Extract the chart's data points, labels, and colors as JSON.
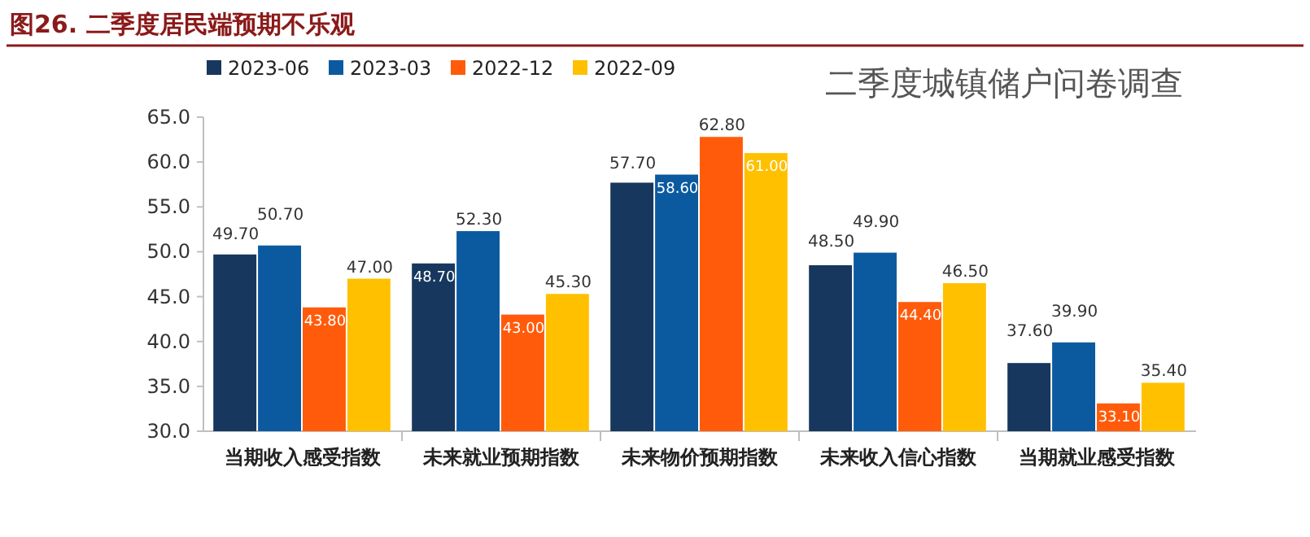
{
  "chart_data": {
    "type": "bar",
    "title": "图26. 二季度居民端预期不乐观",
    "annotations": [
      "二季度城镇储户问卷调查"
    ],
    "categories": [
      "当期收入感受指数",
      "未来就业预期指数",
      "未来物价预期指数",
      "未来收入信心指数",
      "当期就业感受指数"
    ],
    "series": [
      {
        "name": "2023-06",
        "color": "#17375e",
        "values": [
          49.7,
          48.7,
          57.7,
          48.5,
          37.6
        ],
        "value_labels": [
          "49.70",
          "48.70",
          "57.70",
          "48.50",
          "37.60"
        ]
      },
      {
        "name": "2023-03",
        "color": "#0b5aa0",
        "values": [
          50.7,
          52.3,
          58.6,
          49.9,
          39.9
        ],
        "value_labels": [
          "50.70",
          "52.30",
          "58.60",
          "49.90",
          "39.90"
        ]
      },
      {
        "name": "2022-12",
        "color": "#ff5b0a",
        "values": [
          43.8,
          43.0,
          62.8,
          44.4,
          33.1
        ],
        "value_labels": [
          "43.80",
          "43.00",
          "62.80",
          "44.40",
          "33.10"
        ]
      },
      {
        "name": "2022-09",
        "color": "#ffc000",
        "values": [
          47.0,
          45.3,
          61.0,
          46.5,
          35.4
        ],
        "value_labels": [
          "47.00",
          "45.30",
          "61.00",
          "46.50",
          "35.40"
        ]
      }
    ],
    "ylim": [
      30,
      65
    ],
    "yticks": [
      {
        "value": 30,
        "label": "30.0"
      },
      {
        "value": 35,
        "label": "35.0"
      },
      {
        "value": 40,
        "label": "40.0"
      },
      {
        "value": 45,
        "label": "45.0"
      },
      {
        "value": 50,
        "label": "50.0"
      },
      {
        "value": 55,
        "label": "55.0"
      },
      {
        "value": 60,
        "label": "60.0"
      },
      {
        "value": 65,
        "label": "65.0"
      }
    ],
    "legend": "top left",
    "grid": false
  }
}
